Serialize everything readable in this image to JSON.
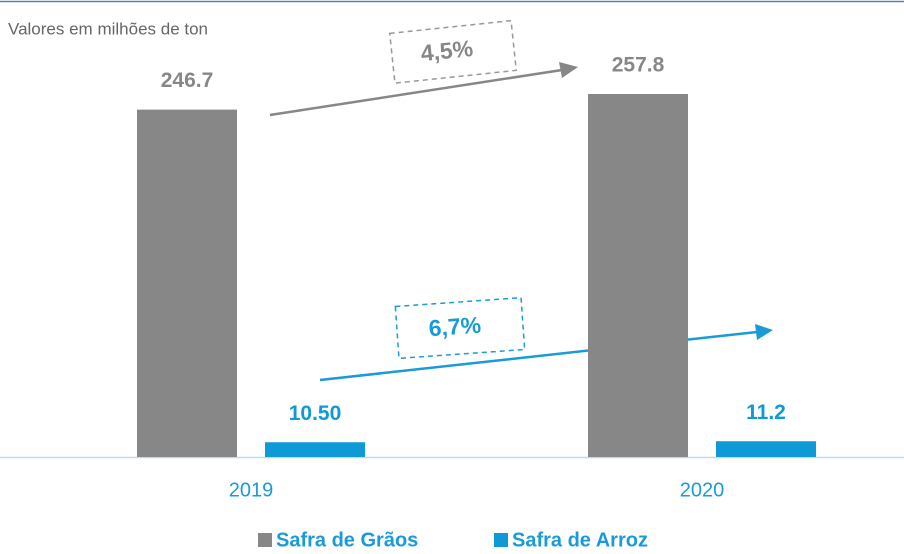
{
  "chart_data": {
    "type": "bar",
    "subtitle": "Valores em milhões de ton",
    "categories": [
      "2019",
      "2020"
    ],
    "series": [
      {
        "name": "Safra de Grãos",
        "color": "#878787",
        "values": [
          246.7,
          257.8
        ]
      },
      {
        "name": "Safra de Arroz",
        "color": "#0f9ad7",
        "values": [
          10.5,
          11.2
        ],
        "value_labels": [
          "10.50",
          "11.2"
        ]
      }
    ],
    "annotations": [
      "4,5%",
      "6,7%"
    ],
    "legend": "bottom"
  }
}
